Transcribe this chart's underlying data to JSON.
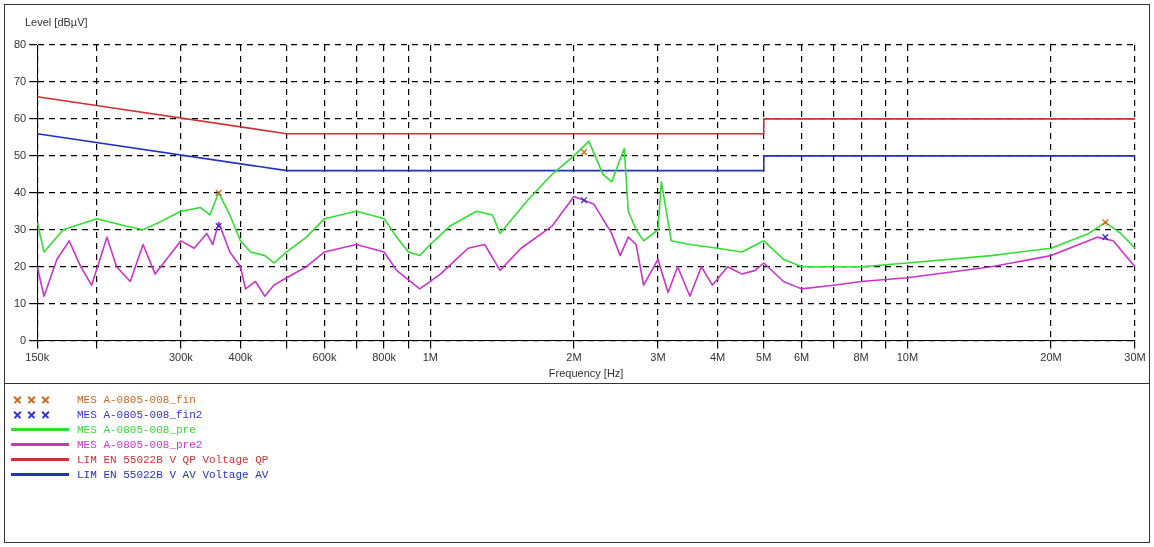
{
  "chart_data": {
    "type": "line",
    "ylabel": "Level [dBµV]",
    "xlabel": "Frequency [Hz]",
    "log": "x",
    "grid": true,
    "legend": "bottom",
    "line_style": "solid",
    "xlim": [
      150000,
      30000000
    ],
    "ylim": [
      0,
      80
    ],
    "yticks": [
      0,
      10,
      20,
      30,
      40,
      50,
      60,
      70,
      80
    ],
    "xticks": [
      {
        "value": 150000,
        "label": "150k"
      },
      {
        "value": 200000,
        "label": null
      },
      {
        "value": 300000,
        "label": "300k"
      },
      {
        "value": 400000,
        "label": "400k"
      },
      {
        "value": 500000,
        "label": null
      },
      {
        "value": 600000,
        "label": "600k"
      },
      {
        "value": 700000,
        "label": null
      },
      {
        "value": 800000,
        "label": "800k"
      },
      {
        "value": 900000,
        "label": null
      },
      {
        "value": 1000000,
        "label": "1M"
      },
      {
        "value": 2000000,
        "label": "2M"
      },
      {
        "value": 3000000,
        "label": "3M"
      },
      {
        "value": 4000000,
        "label": "4M"
      },
      {
        "value": 5000000,
        "label": "5M"
      },
      {
        "value": 6000000,
        "label": "6M"
      },
      {
        "value": 7000000,
        "label": null
      },
      {
        "value": 8000000,
        "label": "8M"
      },
      {
        "value": 9000000,
        "label": null
      },
      {
        "value": 10000000,
        "label": "10M"
      },
      {
        "value": 20000000,
        "label": "20M"
      },
      {
        "value": 30000000,
        "label": "30M"
      }
    ],
    "series": [
      {
        "name": "MES A-0805-008_fin",
        "type": "scatter",
        "marker": "cross",
        "color": "#cc6622",
        "x": [
          360000,
          2100000,
          26000000
        ],
        "values": [
          40,
          51,
          32
        ]
      },
      {
        "name": "MES A-0805-008_fin2",
        "type": "scatter",
        "marker": "cross",
        "color": "#3333cc",
        "x": [
          360000,
          2100000,
          26000000
        ],
        "values": [
          31,
          38,
          28
        ]
      },
      {
        "name": "MES A-0805-008_pre",
        "type": "line",
        "marker": "none",
        "color": "#33dd33",
        "x": [
          150000,
          155000,
          170000,
          200000,
          230000,
          250000,
          270000,
          300000,
          330000,
          345000,
          360000,
          380000,
          400000,
          420000,
          450000,
          470000,
          500000,
          550000,
          600000,
          700000,
          750000,
          800000,
          850000,
          900000,
          950000,
          1000000,
          1100000,
          1250000,
          1350000,
          1400000,
          1600000,
          1800000,
          2000000,
          2150000,
          2300000,
          2400000,
          2550000,
          2600000,
          2700000,
          2800000,
          3000000,
          3050000,
          3200000,
          3500000,
          4000000,
          4500000,
          5000000,
          5500000,
          6000000,
          7000000,
          8000000,
          10000000,
          15000000,
          20000000,
          24000000,
          26000000,
          28000000,
          30000000
        ],
        "values": [
          32,
          24,
          30,
          33,
          31,
          30,
          32,
          35,
          36,
          34,
          40,
          34,
          27,
          24,
          23,
          21,
          24,
          28,
          33,
          35,
          34,
          33,
          28,
          24,
          23,
          26,
          31,
          35,
          34,
          29,
          38,
          45,
          50,
          54,
          45,
          43,
          52,
          35,
          30,
          27,
          30,
          43,
          27,
          26,
          25,
          24,
          27,
          22,
          20,
          20,
          20,
          21,
          23,
          25,
          29,
          32,
          29,
          25
        ]
      },
      {
        "name": "MES A-0805-008_pre2",
        "type": "line",
        "marker": "none",
        "color": "#cc33cc",
        "x": [
          150000,
          155000,
          165000,
          175000,
          185000,
          195000,
          210000,
          220000,
          235000,
          250000,
          265000,
          280000,
          300000,
          320000,
          340000,
          350000,
          360000,
          380000,
          400000,
          410000,
          430000,
          450000,
          470000,
          500000,
          550000,
          600000,
          700000,
          800000,
          850000,
          950000,
          1050000,
          1200000,
          1300000,
          1400000,
          1550000,
          1800000,
          2000000,
          2200000,
          2400000,
          2500000,
          2600000,
          2700000,
          2800000,
          3000000,
          3150000,
          3300000,
          3500000,
          3700000,
          3900000,
          4200000,
          4500000,
          4800000,
          5000000,
          5500000,
          6000000,
          7000000,
          8000000,
          10000000,
          15000000,
          20000000,
          25000000,
          27000000,
          30000000
        ],
        "values": [
          20,
          12,
          22,
          27,
          20,
          15,
          28,
          20,
          16,
          26,
          18,
          22,
          27,
          25,
          29,
          26,
          32,
          24,
          20,
          14,
          16,
          12,
          15,
          17,
          20,
          24,
          26,
          24,
          19,
          14,
          18,
          25,
          26,
          19,
          25,
          31,
          39,
          37,
          29,
          23,
          28,
          26,
          15,
          22,
          13,
          20,
          12,
          20,
          15,
          20,
          18,
          19,
          21,
          16,
          14,
          15,
          16,
          17,
          20,
          23,
          28,
          27,
          20
        ]
      },
      {
        "name": "LIM EN 55022B V QP Voltage QP",
        "type": "line",
        "marker": "none",
        "color": "#cc3333",
        "x": [
          150000,
          500000,
          5000000,
          5000000,
          30000000
        ],
        "values": [
          66,
          56,
          56,
          60,
          60
        ]
      },
      {
        "name": "LIM EN 55022B V AV Voltage AV",
        "type": "line",
        "marker": "none",
        "color": "#2233bb",
        "x": [
          150000,
          500000,
          5000000,
          5000000,
          30000000
        ],
        "values": [
          56,
          46,
          46,
          50,
          50
        ]
      }
    ]
  }
}
